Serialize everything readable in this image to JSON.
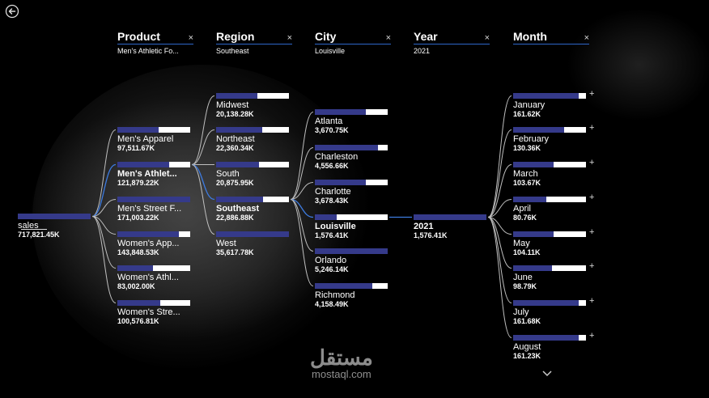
{
  "back_icon": "back-arrow-icon",
  "headers": [
    {
      "title": "Product",
      "filter": "Men's Athletic Fo..."
    },
    {
      "title": "Region",
      "filter": "Southeast"
    },
    {
      "title": "City",
      "filter": "Louisville"
    },
    {
      "title": "Year",
      "filter": "2021"
    },
    {
      "title": "Month",
      "filter": ""
    }
  ],
  "clear_symbol": "×",
  "expand_symbol": "+",
  "root": {
    "label": "sales",
    "value": "717,821.45K",
    "fill": 1.0
  },
  "levels": [
    [
      {
        "label": "Men's Apparel",
        "value": "97,511.67K",
        "fill": 0.57
      },
      {
        "label": "Men's Athlet...",
        "value": "121,879.22K",
        "fill": 0.71,
        "selected": true
      },
      {
        "label": "Men's Street F...",
        "value": "171,003.22K",
        "fill": 1.0
      },
      {
        "label": "Women's App...",
        "value": "143,848.53K",
        "fill": 0.84
      },
      {
        "label": "Women's Athl...",
        "value": "83,002.00K",
        "fill": 0.49
      },
      {
        "label": "Women's Stre...",
        "value": "100,576.81K",
        "fill": 0.59
      }
    ],
    [
      {
        "label": "Midwest",
        "value": "20,138.28K",
        "fill": 0.57
      },
      {
        "label": "Northeast",
        "value": "22,360.34K",
        "fill": 0.63
      },
      {
        "label": "South",
        "value": "20,875.95K",
        "fill": 0.59
      },
      {
        "label": "Southeast",
        "value": "22,886.88K",
        "fill": 0.64,
        "selected": true
      },
      {
        "label": "West",
        "value": "35,617.78K",
        "fill": 1.0
      }
    ],
    [
      {
        "label": "Atlanta",
        "value": "3,670.75K",
        "fill": 0.7
      },
      {
        "label": "Charleston",
        "value": "4,556.66K",
        "fill": 0.87
      },
      {
        "label": "Charlotte",
        "value": "3,678.43K",
        "fill": 0.7
      },
      {
        "label": "Louisville",
        "value": "1,576.41K",
        "fill": 0.3,
        "selected": true
      },
      {
        "label": "Orlando",
        "value": "5,246.14K",
        "fill": 1.0
      },
      {
        "label": "Richmond",
        "value": "4,158.49K",
        "fill": 0.79
      }
    ],
    [
      {
        "label": "2021",
        "value": "1,576.41K",
        "fill": 1.0,
        "selected": true
      }
    ],
    [
      {
        "label": "January",
        "value": "161.62K",
        "fill": 0.9
      },
      {
        "label": "February",
        "value": "130.36K",
        "fill": 0.7
      },
      {
        "label": "March",
        "value": "103.67K",
        "fill": 0.56
      },
      {
        "label": "April",
        "value": "80.76K",
        "fill": 0.45
      },
      {
        "label": "May",
        "value": "104.11K",
        "fill": 0.56
      },
      {
        "label": "June",
        "value": "98.79K",
        "fill": 0.53
      },
      {
        "label": "July",
        "value": "161.68K",
        "fill": 0.9
      },
      {
        "label": "August",
        "value": "161.23K",
        "fill": 0.9
      }
    ]
  ],
  "more_icon": "chevron-down-icon",
  "watermark": {
    "arabic": "مستقل",
    "latin": "mostaql.com"
  }
}
